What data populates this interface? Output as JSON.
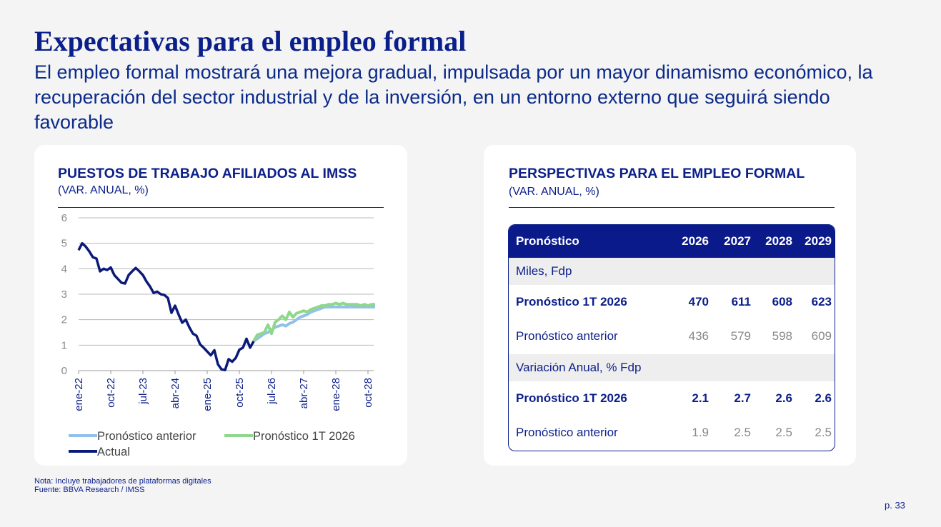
{
  "header": {
    "title": "Expectativas para el empleo formal",
    "subtitle": "El empleo formal mostrará una mejora gradual, impulsada por un mayor dinamismo económico, la recuperación del sector industrial y de la inversión, en un entorno externo que seguirá siendo favorable"
  },
  "chart_data": {
    "type": "line",
    "title": "PUESTOS DE TRABAJO AFILIADOS AL IMSS",
    "subtitle": "(VAR. ANUAL, %)",
    "categories": [
      "ene-22",
      null,
      null,
      null,
      null,
      null,
      null,
      null,
      null,
      "oct-22",
      null,
      null,
      null,
      null,
      null,
      null,
      null,
      null,
      "jul-23",
      null,
      null,
      null,
      null,
      null,
      null,
      null,
      null,
      "abr-24",
      null,
      null,
      null,
      null,
      null,
      null,
      null,
      null,
      "ene-25",
      null,
      null,
      null,
      null,
      null,
      null,
      null,
      null,
      "oct-25",
      null,
      null,
      null,
      null,
      null,
      null,
      null,
      null,
      "jul-26",
      null,
      null,
      null,
      null,
      null,
      null,
      null,
      null,
      "abr-27",
      null,
      null,
      null,
      null,
      null,
      null,
      null,
      null,
      "ene-28",
      null,
      null,
      null,
      null,
      null,
      null,
      null,
      null,
      "oct-28",
      null,
      null
    ],
    "series": [
      {
        "name": "Pronóstico anterior",
        "color": "#92c0ea",
        "values": [
          null,
          null,
          null,
          null,
          null,
          null,
          null,
          null,
          null,
          null,
          null,
          null,
          null,
          null,
          null,
          null,
          null,
          null,
          null,
          null,
          null,
          null,
          null,
          null,
          null,
          null,
          null,
          null,
          null,
          null,
          null,
          null,
          null,
          null,
          null,
          null,
          null,
          null,
          null,
          null,
          null,
          null,
          null,
          null,
          null,
          null,
          null,
          null,
          null,
          1.15,
          1.25,
          1.35,
          1.45,
          1.5,
          1.6,
          1.7,
          1.75,
          1.8,
          1.75,
          1.85,
          1.9,
          2.0,
          2.1,
          2.15,
          2.2,
          2.3,
          2.35,
          2.4,
          2.45,
          2.5,
          2.5,
          2.5,
          2.5,
          2.5,
          2.5,
          2.5,
          2.5,
          2.5,
          2.5,
          2.5,
          2.5,
          2.5,
          2.5,
          2.5
        ]
      },
      {
        "name": "Pronóstico 1T 2026",
        "color": "#8fd88b",
        "values": [
          null,
          null,
          null,
          null,
          null,
          null,
          null,
          null,
          null,
          null,
          null,
          null,
          null,
          null,
          null,
          null,
          null,
          null,
          null,
          null,
          null,
          null,
          null,
          null,
          null,
          null,
          null,
          null,
          null,
          null,
          null,
          null,
          null,
          null,
          null,
          null,
          null,
          null,
          null,
          null,
          null,
          null,
          null,
          null,
          null,
          null,
          null,
          null,
          null,
          1.15,
          1.4,
          1.45,
          1.5,
          1.8,
          1.45,
          1.9,
          2.0,
          2.15,
          2.0,
          2.3,
          2.1,
          2.25,
          2.3,
          2.35,
          2.3,
          2.4,
          2.45,
          2.5,
          2.55,
          2.55,
          2.6,
          2.6,
          2.65,
          2.6,
          2.65,
          2.6,
          2.6,
          2.6,
          2.6,
          2.55,
          2.6,
          2.55,
          2.6,
          2.6
        ]
      },
      {
        "name": "Actual",
        "color": "#0b1a78",
        "values": [
          4.73,
          5.0,
          4.87,
          4.68,
          4.45,
          4.4,
          3.9,
          4.0,
          3.95,
          4.05,
          3.75,
          3.6,
          3.45,
          3.42,
          3.75,
          3.9,
          4.03,
          3.9,
          3.75,
          3.5,
          3.3,
          3.05,
          3.1,
          3.0,
          2.97,
          2.85,
          2.27,
          2.55,
          2.2,
          1.88,
          2.0,
          1.7,
          1.45,
          1.37,
          1.03,
          0.9,
          0.75,
          0.6,
          0.8,
          0.25,
          0.05,
          0.02,
          0.45,
          0.35,
          0.5,
          0.82,
          0.9,
          1.25,
          0.9,
          1.15,
          null,
          null,
          null,
          null,
          null,
          null,
          null,
          null,
          null,
          null,
          null,
          null,
          null,
          null,
          null,
          null,
          null,
          null,
          null,
          null,
          null,
          null,
          null,
          null,
          null,
          null,
          null,
          null,
          null,
          null,
          null,
          null,
          null,
          null
        ]
      }
    ],
    "ylim": [
      0,
      6
    ],
    "yticks": [
      0,
      1,
      2,
      3,
      4,
      5,
      6
    ],
    "grid": true
  },
  "table": {
    "title": "PERSPECTIVAS PARA EL EMPLEO FORMAL",
    "subtitle": "(VAR. ANUAL, %)",
    "header": [
      "Pronóstico",
      "2026",
      "2027",
      "2028",
      "2029"
    ],
    "sections": [
      {
        "title": "Miles, Fdp",
        "rows": [
          {
            "label": "Pronóstico 1T 2026",
            "values": [
              470,
              611,
              608,
              623
            ]
          },
          {
            "label": "Pronóstico anterior",
            "values": [
              436,
              579,
              598,
              609
            ]
          }
        ]
      },
      {
        "title": "Variación Anual, % Fdp",
        "rows": [
          {
            "label": "Pronóstico 1T 2026",
            "values": [
              2.1,
              2.7,
              2.6,
              2.6
            ]
          },
          {
            "label": "Pronóstico anterior",
            "values": [
              1.9,
              2.5,
              2.5,
              2.5
            ]
          }
        ]
      }
    ]
  },
  "footer": {
    "note": "Nota: Incluye trabajadores de plataformas digitales",
    "source": "Fuente: BBVA Research / IMSS",
    "page": "p. 33"
  }
}
